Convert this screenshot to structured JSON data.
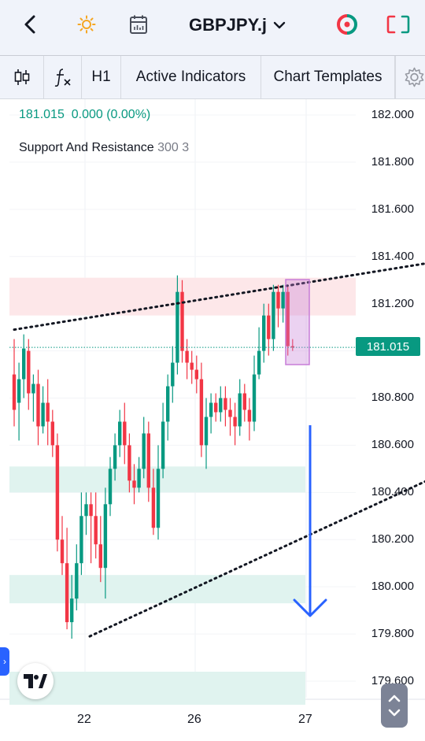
{
  "header": {
    "symbol": "GBPJPY.j",
    "icons": [
      "back-icon",
      "sun-icon",
      "calendar-icon",
      "chevron-down-icon",
      "trade-icon",
      "fullscreen-icon"
    ]
  },
  "toolbar": {
    "timeframe": "H1",
    "indicators_label": "Active Indicators",
    "templates_label": "Chart Templates",
    "icons": [
      "candles-icon",
      "fx-icon",
      "gear-icon"
    ]
  },
  "legend": {
    "price": "181.015",
    "change": "0.000 (0.00%)",
    "indicator_name": "Support And Resistance",
    "indicator_params": "300 3"
  },
  "price_axis": {
    "labels": [
      "182.000",
      "181.800",
      "181.600",
      "181.400",
      "181.200",
      "180.800",
      "180.600",
      "180.400",
      "180.200",
      "180.000",
      "179.800",
      "179.600"
    ],
    "current_price": "181.015",
    "current_color": "#089981"
  },
  "time_axis": {
    "labels": [
      "22",
      "26",
      "27"
    ]
  },
  "colors": {
    "up": "#089981",
    "down": "#f23645",
    "resistance_zone": "#fde7e9",
    "support_zone": "#e0f3ef",
    "arrow": "#2962ff",
    "highlight": "#c77dd8"
  },
  "chart_data": {
    "type": "candlestick",
    "symbol": "GBPJPY.j",
    "timeframe": "H1",
    "ylim": [
      179.5,
      182.05
    ],
    "resistance_zone": [
      181.15,
      181.31
    ],
    "support_zones": [
      [
        180.4,
        180.51
      ],
      [
        179.93,
        180.05
      ],
      [
        179.5,
        179.64
      ]
    ],
    "trendline_upper": [
      [
        0,
        181.09
      ],
      [
        145,
        181.57
      ]
    ],
    "trendline_lower": [
      [
        20,
        179.79
      ],
      [
        145,
        181.02
      ]
    ],
    "current_price": 181.015,
    "candles": [
      [
        180.9,
        180.75,
        181.05,
        180.68
      ],
      [
        180.78,
        180.88,
        180.95,
        180.62
      ],
      [
        180.88,
        181.01,
        181.07,
        180.8
      ],
      [
        181.0,
        180.82,
        181.05,
        180.75
      ],
      [
        180.82,
        180.86,
        180.9,
        180.7
      ],
      [
        180.86,
        180.68,
        180.92,
        180.6
      ],
      [
        180.68,
        180.78,
        180.85,
        180.65
      ],
      [
        180.78,
        180.7,
        180.88,
        180.6
      ],
      [
        180.7,
        180.6,
        180.75,
        180.55
      ],
      [
        180.6,
        180.2,
        180.65,
        180.15
      ],
      [
        180.2,
        180.1,
        180.3,
        180.05
      ],
      [
        180.1,
        179.85,
        180.25,
        179.82
      ],
      [
        179.85,
        179.95,
        180.05,
        179.78
      ],
      [
        179.95,
        180.1,
        180.18,
        179.9
      ],
      [
        180.1,
        180.3,
        180.4,
        180.05
      ],
      [
        180.3,
        180.35,
        180.4,
        180.22
      ],
      [
        180.35,
        180.3,
        180.4,
        180.1
      ],
      [
        180.3,
        180.18,
        180.4,
        180.12
      ],
      [
        180.18,
        180.08,
        180.3,
        180.02
      ],
      [
        180.08,
        180.35,
        180.42,
        179.95
      ],
      [
        180.35,
        180.5,
        180.55,
        180.3
      ],
      [
        180.5,
        180.6,
        180.65,
        180.45
      ],
      [
        180.6,
        180.7,
        180.75,
        180.55
      ],
      [
        180.7,
        180.6,
        180.78,
        180.52
      ],
      [
        180.6,
        180.45,
        180.65,
        180.4
      ],
      [
        180.45,
        180.42,
        180.52,
        180.35
      ],
      [
        180.42,
        180.5,
        180.55,
        180.4
      ],
      [
        180.5,
        180.65,
        180.72,
        180.46
      ],
      [
        180.65,
        180.42,
        180.7,
        180.36
      ],
      [
        180.42,
        180.25,
        180.5,
        180.22
      ],
      [
        180.25,
        180.5,
        180.6,
        180.2
      ],
      [
        180.5,
        180.7,
        180.78,
        180.46
      ],
      [
        180.7,
        180.85,
        180.9,
        180.62
      ],
      [
        180.85,
        180.95,
        181.02,
        180.78
      ],
      [
        180.95,
        181.25,
        181.32,
        180.9
      ],
      [
        181.25,
        181.0,
        181.3,
        180.95
      ],
      [
        181.0,
        180.95,
        181.05,
        180.88
      ],
      [
        180.95,
        180.92,
        181.0,
        180.86
      ],
      [
        180.92,
        180.88,
        180.98,
        180.82
      ],
      [
        180.88,
        180.6,
        180.95,
        180.55
      ],
      [
        180.6,
        180.72,
        180.8,
        180.5
      ],
      [
        180.72,
        180.78,
        180.82,
        180.65
      ],
      [
        180.78,
        180.74,
        180.82,
        180.7
      ],
      [
        180.74,
        180.8,
        180.85,
        180.7
      ],
      [
        180.8,
        180.75,
        180.85,
        180.68
      ],
      [
        180.75,
        180.72,
        180.8,
        180.64
      ],
      [
        180.72,
        180.68,
        180.78,
        180.6
      ],
      [
        180.68,
        180.82,
        180.88,
        180.64
      ],
      [
        180.82,
        180.75,
        180.86,
        180.7
      ],
      [
        180.75,
        180.7,
        180.8,
        180.62
      ],
      [
        180.7,
        180.9,
        180.98,
        180.66
      ],
      [
        180.9,
        181.0,
        181.1,
        180.88
      ],
      [
        181.0,
        181.15,
        181.2,
        180.95
      ],
      [
        181.15,
        181.05,
        181.2,
        180.98
      ],
      [
        181.05,
        181.25,
        181.28,
        181.0
      ],
      [
        181.25,
        181.18,
        181.28,
        181.1
      ],
      [
        181.18,
        181.25,
        181.28,
        181.12
      ],
      [
        181.25,
        181.02,
        181.28,
        180.98
      ],
      [
        181.02,
        181.015,
        181.05,
        181.0
      ]
    ]
  }
}
